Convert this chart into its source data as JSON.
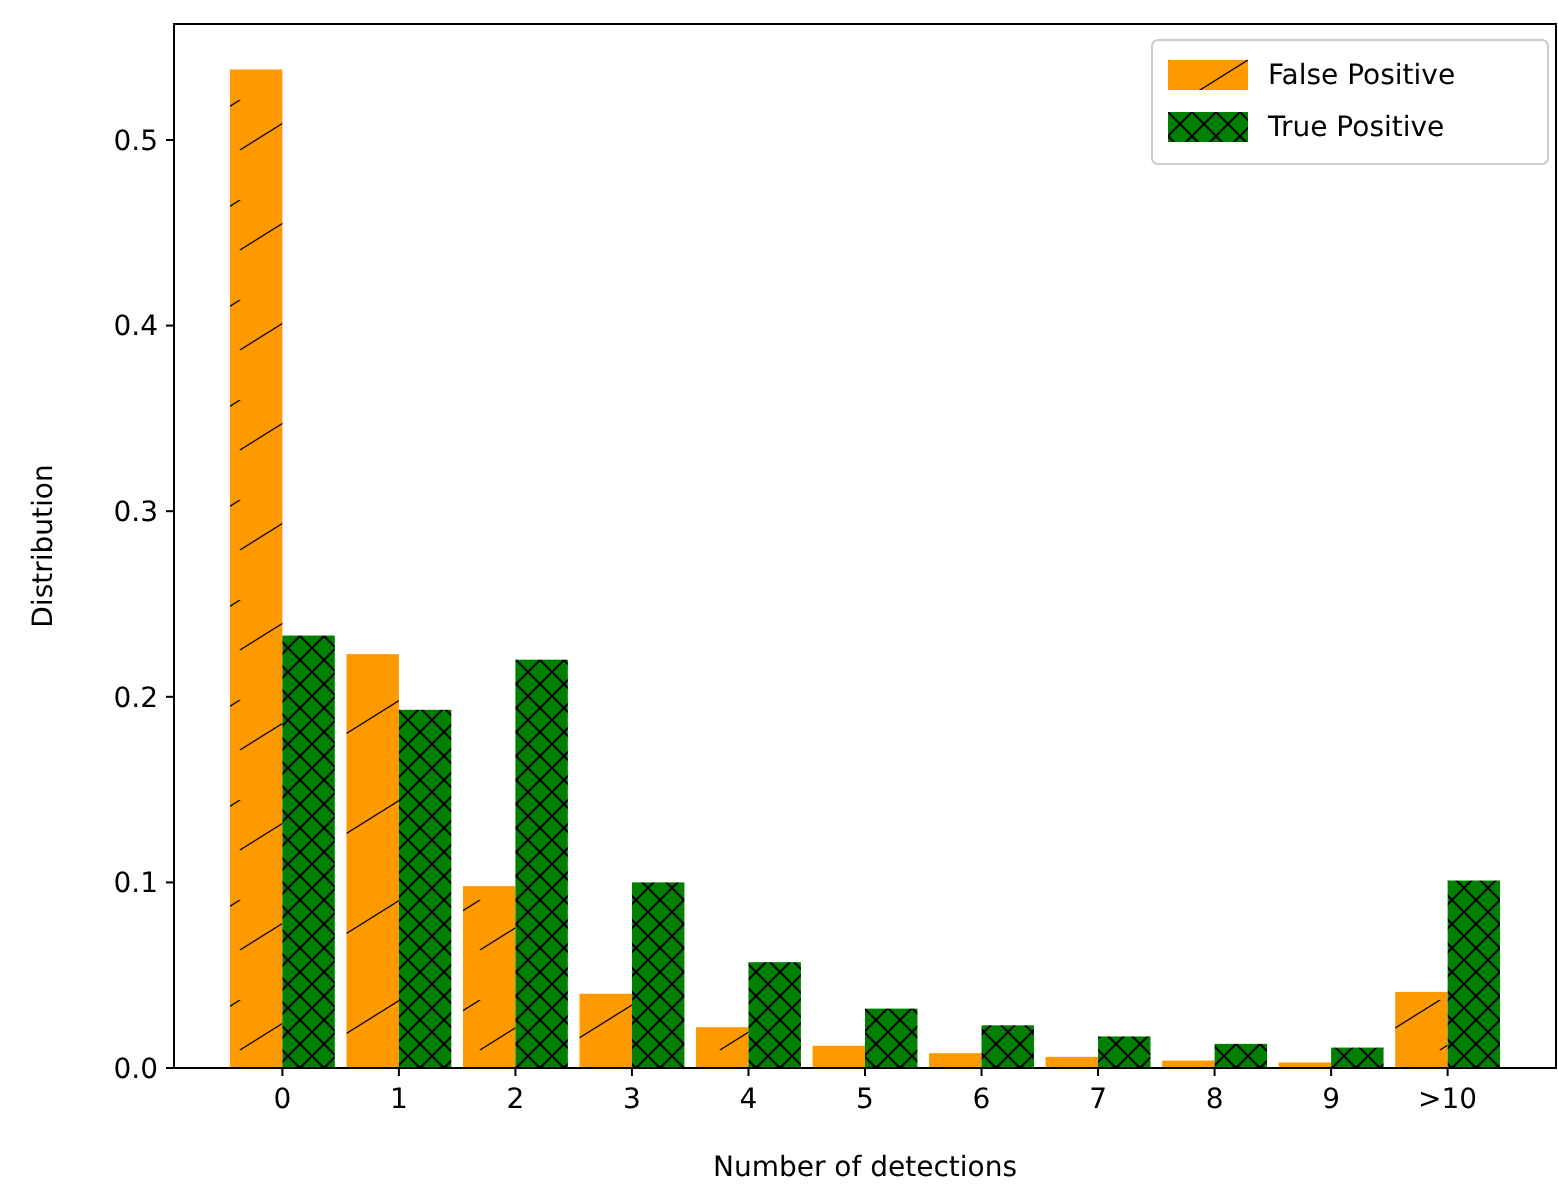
{
  "chart_data": {
    "type": "bar",
    "xlabel": "Number of detections",
    "ylabel": "Distribution",
    "categories": [
      "0",
      "1",
      "2",
      "3",
      "4",
      "5",
      "6",
      "7",
      "8",
      "9",
      ">10"
    ],
    "series": [
      {
        "name": "False Positive",
        "color": "#ff9900",
        "values": [
          0.538,
          0.223,
          0.098,
          0.04,
          0.022,
          0.012,
          0.008,
          0.006,
          0.004,
          0.003,
          0.041
        ]
      },
      {
        "name": "True Positive",
        "color": "#008000",
        "values": [
          0.233,
          0.193,
          0.22,
          0.1,
          0.057,
          0.032,
          0.023,
          0.017,
          0.013,
          0.011,
          0.101
        ]
      }
    ],
    "ylim": [
      0,
      0.5625
    ],
    "yticks": [
      {
        "value": 0,
        "label": "0.0"
      },
      0.1,
      0.2,
      0.3,
      0.4,
      0.5
    ],
    "grid": false,
    "legend": "top right"
  }
}
